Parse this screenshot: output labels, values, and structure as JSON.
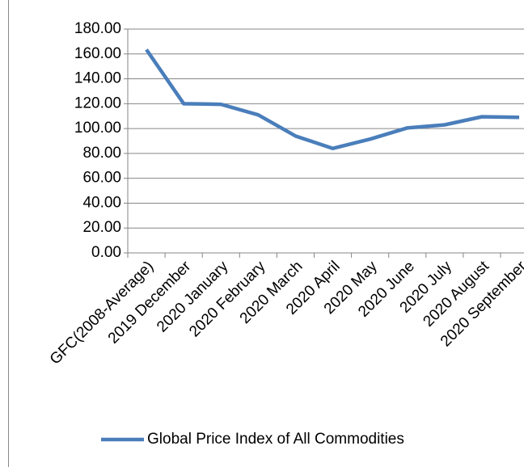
{
  "chart_data": {
    "type": "line",
    "categories": [
      "GFC(2008-Average)",
      "2019 December",
      "2020 January",
      "2020 February",
      "2020 March",
      "2020 April",
      "2020 May",
      "2020 June",
      "2020 July",
      "2020 August",
      "2020 September"
    ],
    "series": [
      {
        "name": "Global Price Index of All Commodities",
        "color": "#4a7ebb",
        "values": [
          163.5,
          120,
          119.5,
          111,
          94,
          84,
          91.5,
          100.5,
          103,
          109.5,
          109
        ]
      }
    ],
    "ylim": [
      0,
      180
    ],
    "yticks": [
      {
        "value": 0,
        "label": "0.00"
      },
      {
        "value": 20,
        "label": "20.00"
      },
      {
        "value": 40,
        "label": "40.00"
      },
      {
        "value": 60,
        "label": "60.00"
      },
      {
        "value": 80,
        "label": "80.00"
      },
      {
        "value": 100,
        "label": "100.00"
      },
      {
        "value": 120,
        "label": "120.00"
      },
      {
        "value": 140,
        "label": "140.00"
      },
      {
        "value": 160,
        "label": "160.00"
      },
      {
        "value": 180,
        "label": "180.00"
      }
    ],
    "grid": true,
    "legend": "bottom"
  }
}
